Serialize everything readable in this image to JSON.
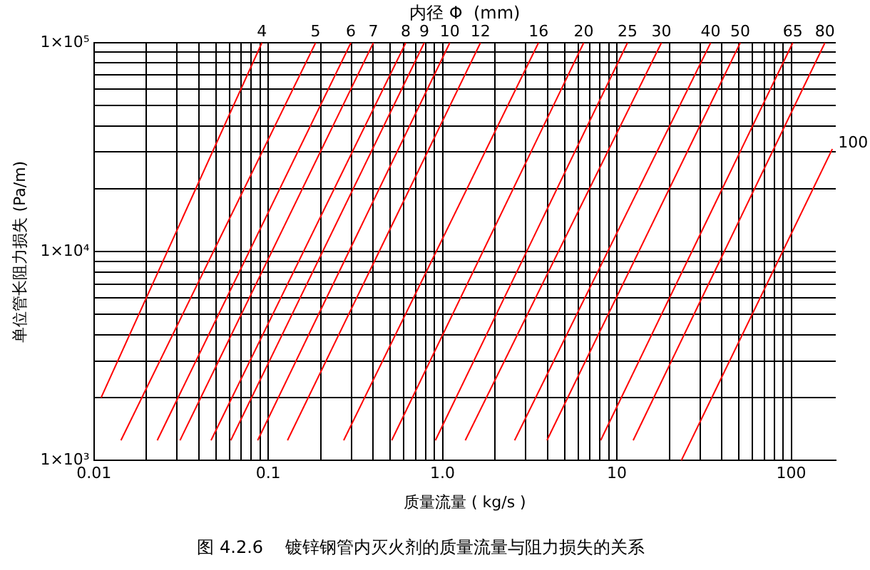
{
  "chart_data": {
    "type": "line",
    "title": "图 4.2.6    镀锌钢管内灭火剂的质量流量与阻力损失的关系",
    "xlabel": "质量流量 ( kg/s )",
    "ylabel": "单位管长阻力损失 (Pa/m)",
    "legend_title": "内径 Φ  (mm)",
    "log": "xy",
    "grid": true,
    "legend": false,
    "marker": "none",
    "line_style": "solid",
    "xlim": [
      0.01,
      180
    ],
    "ylim": [
      1000,
      100000
    ],
    "xticks": [
      {
        "value": 0.01,
        "label": "0.01"
      },
      {
        "value": 0.02,
        "label": null
      },
      {
        "value": 0.03,
        "label": null
      },
      {
        "value": 0.04,
        "label": null
      },
      {
        "value": 0.05,
        "label": null
      },
      {
        "value": 0.06,
        "label": null
      },
      {
        "value": 0.07,
        "label": null
      },
      {
        "value": 0.08,
        "label": null
      },
      {
        "value": 0.09,
        "label": null
      },
      {
        "value": 0.1,
        "label": "0.1"
      },
      {
        "value": 0.2,
        "label": null
      },
      {
        "value": 0.3,
        "label": null
      },
      {
        "value": 0.4,
        "label": null
      },
      {
        "value": 0.5,
        "label": null
      },
      {
        "value": 0.6,
        "label": null
      },
      {
        "value": 0.7,
        "label": null
      },
      {
        "value": 0.8,
        "label": null
      },
      {
        "value": 0.9,
        "label": null
      },
      {
        "value": 1,
        "label": "1.0"
      },
      {
        "value": 2,
        "label": null
      },
      {
        "value": 3,
        "label": null
      },
      {
        "value": 4,
        "label": null
      },
      {
        "value": 5,
        "label": null
      },
      {
        "value": 6,
        "label": null
      },
      {
        "value": 7,
        "label": null
      },
      {
        "value": 8,
        "label": null
      },
      {
        "value": 9,
        "label": null
      },
      {
        "value": 10,
        "label": "10"
      },
      {
        "value": 20,
        "label": null
      },
      {
        "value": 30,
        "label": null
      },
      {
        "value": 40,
        "label": null
      },
      {
        "value": 50,
        "label": null
      },
      {
        "value": 60,
        "label": null
      },
      {
        "value": 70,
        "label": null
      },
      {
        "value": 80,
        "label": null
      },
      {
        "value": 90,
        "label": null
      },
      {
        "value": 100,
        "label": "100"
      }
    ],
    "yticks": [
      {
        "value": 1000,
        "label": "1×10³"
      },
      {
        "value": 2000,
        "label": null
      },
      {
        "value": 3000,
        "label": null
      },
      {
        "value": 4000,
        "label": null
      },
      {
        "value": 5000,
        "label": null
      },
      {
        "value": 6000,
        "label": null
      },
      {
        "value": 7000,
        "label": null
      },
      {
        "value": 8000,
        "label": null
      },
      {
        "value": 9000,
        "label": null
      },
      {
        "value": 10000,
        "label": "1×10⁴"
      },
      {
        "value": 20000,
        "label": null
      },
      {
        "value": 30000,
        "label": null
      },
      {
        "value": 40000,
        "label": null
      },
      {
        "value": 50000,
        "label": null
      },
      {
        "value": 60000,
        "label": null
      },
      {
        "value": 70000,
        "label": null
      },
      {
        "value": 80000,
        "label": null
      },
      {
        "value": 90000,
        "label": null
      },
      {
        "value": 100000,
        "label": "1×10⁵"
      }
    ],
    "series": [
      {
        "name": "4",
        "color": "#ff0000",
        "x": [
          0.011,
          0.092
        ],
        "values": [
          2000,
          100000
        ]
      },
      {
        "name": "5",
        "color": "#ff0000",
        "x": [
          0.0143,
          0.187
        ],
        "values": [
          1250,
          100000
        ]
      },
      {
        "name": "6",
        "color": "#ff0000",
        "x": [
          0.0231,
          0.298
        ],
        "values": [
          1250,
          100000
        ]
      },
      {
        "name": "7",
        "color": "#ff0000",
        "x": [
          0.0312,
          0.401
        ],
        "values": [
          1250,
          100000
        ]
      },
      {
        "name": "8",
        "color": "#ff0000",
        "x": [
          0.047,
          0.615
        ],
        "values": [
          1250,
          100000
        ]
      },
      {
        "name": "9",
        "color": "#ff0000",
        "x": [
          0.061,
          0.785
        ],
        "values": [
          1250,
          100000
        ]
      },
      {
        "name": "10",
        "color": "#ff0000",
        "x": [
          0.087,
          1.1
        ],
        "values": [
          1250,
          100000
        ]
      },
      {
        "name": "12",
        "color": "#ff0000",
        "x": [
          0.129,
          1.65
        ],
        "values": [
          1250,
          100000
        ]
      },
      {
        "name": "16",
        "color": "#ff0000",
        "x": [
          0.271,
          3.55
        ],
        "values": [
          1250,
          100000
        ]
      },
      {
        "name": "20",
        "color": "#ff0000",
        "x": [
          0.511,
          6.45
        ],
        "values": [
          1250,
          100000
        ]
      },
      {
        "name": "25",
        "color": "#ff0000",
        "x": [
          0.91,
          11.5
        ],
        "values": [
          1250,
          100000
        ]
      },
      {
        "name": "30",
        "color": "#ff0000",
        "x": [
          1.35,
          18
        ],
        "values": [
          1250,
          100000
        ]
      },
      {
        "name": "40",
        "color": "#ff0000",
        "x": [
          2.59,
          34.5
        ],
        "values": [
          1250,
          100000
        ]
      },
      {
        "name": "50",
        "color": "#ff0000",
        "x": [
          3.97,
          51
        ],
        "values": [
          1250,
          100000
        ]
      },
      {
        "name": "65",
        "color": "#ff0000",
        "x": [
          8.07,
          102
        ],
        "values": [
          1250,
          100000
        ]
      },
      {
        "name": "80",
        "color": "#ff0000",
        "x": [
          12.4,
          156
        ],
        "values": [
          1250,
          100000
        ]
      },
      {
        "name": "100",
        "color": "#ff0000",
        "x": [
          23.4,
          172
        ],
        "values": [
          1000,
          31000
        ]
      }
    ]
  }
}
